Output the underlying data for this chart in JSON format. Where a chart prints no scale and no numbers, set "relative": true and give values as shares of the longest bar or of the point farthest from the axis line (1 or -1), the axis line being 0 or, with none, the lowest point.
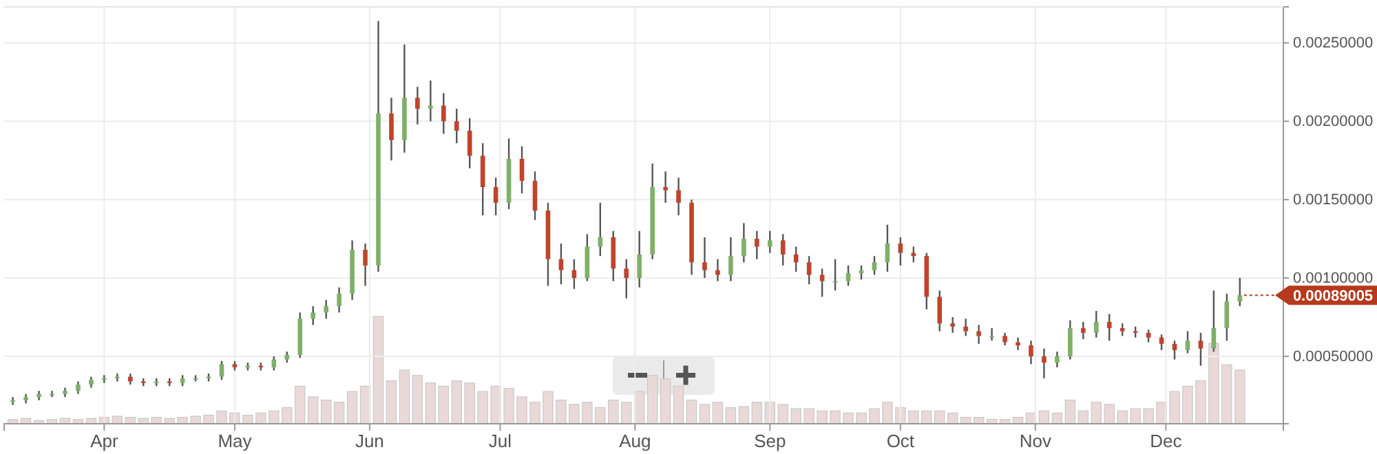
{
  "chart_data": [
    {
      "type": "candlestick",
      "xlim": [
        "--03-09",
        "--12-28"
      ],
      "ylim": [
        7e-05,
        0.00273
      ],
      "xticks": [
        {
          "value": "--04-01",
          "label": "Apr"
        },
        {
          "value": "--05-01",
          "label": "May"
        },
        {
          "value": "--06-01",
          "label": "Jun"
        },
        {
          "value": "--07-01",
          "label": "Jul"
        },
        {
          "value": "--08-01",
          "label": "Aug"
        },
        {
          "value": "--09-01",
          "label": "Sep"
        },
        {
          "value": "--10-01",
          "label": "Oct"
        },
        {
          "value": "--11-01",
          "label": "Nov"
        },
        {
          "value": "--12-01",
          "label": "Dec"
        }
      ],
      "yticks": [
        {
          "value": 0.0005,
          "label": "0.00050000"
        },
        {
          "value": 0.001,
          "label": "0.00100000"
        },
        {
          "value": 0.0015,
          "label": "0.00150000"
        },
        {
          "value": 0.002,
          "label": "0.00200000"
        },
        {
          "value": 0.0025,
          "label": "0.00250000"
        }
      ],
      "grid": true,
      "annotations": [
        {
          "text": "0.00089005",
          "x": "--12-18",
          "y": 0.00089005
        }
      ],
      "x": [
        "--03-11",
        "--03-14",
        "--03-17",
        "--03-20",
        "--03-23",
        "--03-26",
        "--03-29",
        "--04-01",
        "--04-04",
        "--04-07",
        "--04-10",
        "--04-13",
        "--04-16",
        "--04-19",
        "--04-22",
        "--04-25",
        "--04-28",
        "--05-01",
        "--05-04",
        "--05-07",
        "--05-10",
        "--05-13",
        "--05-16",
        "--05-19",
        "--05-22",
        "--05-25",
        "--05-28",
        "--05-31",
        "--06-03",
        "--06-06",
        "--06-09",
        "--06-12",
        "--06-15",
        "--06-18",
        "--06-21",
        "--06-24",
        "--06-27",
        "--06-30",
        "--07-03",
        "--07-06",
        "--07-09",
        "--07-12",
        "--07-15",
        "--07-18",
        "--07-21",
        "--07-24",
        "--07-27",
        "--07-30",
        "--08-02",
        "--08-05",
        "--08-08",
        "--08-11",
        "--08-14",
        "--08-17",
        "--08-20",
        "--08-23",
        "--08-26",
        "--08-29",
        "--09-01",
        "--09-04",
        "--09-07",
        "--09-10",
        "--09-13",
        "--09-16",
        "--09-19",
        "--09-22",
        "--09-25",
        "--09-28",
        "--10-01",
        "--10-04",
        "--10-07",
        "--10-10",
        "--10-13",
        "--10-16",
        "--10-19",
        "--10-22",
        "--10-25",
        "--10-28",
        "--10-31",
        "--11-03",
        "--11-06",
        "--11-09",
        "--11-12",
        "--11-15",
        "--11-18",
        "--11-21",
        "--11-24",
        "--11-27",
        "--11-30",
        "--12-03",
        "--12-06",
        "--12-09",
        "--12-12",
        "--12-15",
        "--12-18"
      ],
      "ohlc": [
        [
          0.00021,
          0.00024,
          0.00019,
          0.00022
        ],
        [
          0.00022,
          0.00026,
          0.0002,
          0.00024
        ],
        [
          0.00024,
          0.00028,
          0.00022,
          0.00026
        ],
        [
          0.00026,
          0.00028,
          0.00024,
          0.00026
        ],
        [
          0.00026,
          0.0003,
          0.00024,
          0.00028
        ],
        [
          0.00028,
          0.00034,
          0.00026,
          0.00032
        ],
        [
          0.00032,
          0.00037,
          0.0003,
          0.00035
        ],
        [
          0.00035,
          0.00038,
          0.00033,
          0.00036
        ],
        [
          0.00036,
          0.00039,
          0.00034,
          0.00037
        ],
        [
          0.00037,
          0.00039,
          0.00032,
          0.00034
        ],
        [
          0.00034,
          0.00036,
          0.00031,
          0.00033
        ],
        [
          0.00033,
          0.00036,
          0.00031,
          0.00034
        ],
        [
          0.00034,
          0.00036,
          0.00031,
          0.00033
        ],
        [
          0.00033,
          0.00038,
          0.00031,
          0.00036
        ],
        [
          0.00036,
          0.00038,
          0.00034,
          0.00036
        ],
        [
          0.00036,
          0.00039,
          0.00034,
          0.00037
        ],
        [
          0.00037,
          0.00047,
          0.00035,
          0.00045
        ],
        [
          0.00045,
          0.00047,
          0.00041,
          0.00043
        ],
        [
          0.00043,
          0.00046,
          0.00041,
          0.00044
        ],
        [
          0.00044,
          0.00046,
          0.00041,
          0.00043
        ],
        [
          0.00043,
          0.0005,
          0.00041,
          0.00048
        ],
        [
          0.00048,
          0.00053,
          0.00046,
          0.00051
        ],
        [
          0.00051,
          0.00078,
          0.00049,
          0.00074
        ],
        [
          0.00074,
          0.00082,
          0.0007,
          0.00078
        ],
        [
          0.00078,
          0.00086,
          0.00074,
          0.00082
        ],
        [
          0.00082,
          0.00094,
          0.00078,
          0.0009
        ],
        [
          0.0009,
          0.00124,
          0.00086,
          0.00118
        ],
        [
          0.00118,
          0.00122,
          0.00095,
          0.00108
        ],
        [
          0.00108,
          0.00264,
          0.00104,
          0.00205
        ],
        [
          0.00205,
          0.00215,
          0.00175,
          0.00188
        ],
        [
          0.00188,
          0.00249,
          0.0018,
          0.00215
        ],
        [
          0.00215,
          0.00222,
          0.00198,
          0.00208
        ],
        [
          0.00208,
          0.00226,
          0.002,
          0.0021
        ],
        [
          0.0021,
          0.00218,
          0.00192,
          0.002
        ],
        [
          0.002,
          0.00208,
          0.00186,
          0.00194
        ],
        [
          0.00194,
          0.00202,
          0.0017,
          0.00178
        ],
        [
          0.00178,
          0.00186,
          0.0014,
          0.00158
        ],
        [
          0.00158,
          0.00164,
          0.0014,
          0.00148
        ],
        [
          0.00148,
          0.00189,
          0.00144,
          0.00176
        ],
        [
          0.00176,
          0.00184,
          0.00154,
          0.00162
        ],
        [
          0.00162,
          0.00168,
          0.00137,
          0.00143
        ],
        [
          0.00143,
          0.00148,
          0.00095,
          0.00112
        ],
        [
          0.00112,
          0.00122,
          0.00096,
          0.00105
        ],
        [
          0.00105,
          0.00112,
          0.00093,
          0.001
        ],
        [
          0.001,
          0.00128,
          0.00098,
          0.0012
        ],
        [
          0.0012,
          0.00148,
          0.00114,
          0.00126
        ],
        [
          0.00126,
          0.0013,
          0.00098,
          0.00106
        ],
        [
          0.00106,
          0.00112,
          0.00087,
          0.001
        ],
        [
          0.001,
          0.0013,
          0.00094,
          0.00115
        ],
        [
          0.00115,
          0.00173,
          0.00112,
          0.00158
        ],
        [
          0.00158,
          0.00168,
          0.00148,
          0.00156
        ],
        [
          0.00156,
          0.00164,
          0.0014,
          0.00148
        ],
        [
          0.00148,
          0.0015,
          0.00102,
          0.0011
        ],
        [
          0.0011,
          0.00126,
          0.001,
          0.00105
        ],
        [
          0.00105,
          0.00112,
          0.00098,
          0.00102
        ],
        [
          0.00102,
          0.00126,
          0.00098,
          0.00114
        ],
        [
          0.00114,
          0.00135,
          0.0011,
          0.00125
        ],
        [
          0.00125,
          0.0013,
          0.00112,
          0.0012
        ],
        [
          0.0012,
          0.0013,
          0.00116,
          0.00124
        ],
        [
          0.00124,
          0.00128,
          0.00108,
          0.00115
        ],
        [
          0.00115,
          0.0012,
          0.00104,
          0.0011
        ],
        [
          0.0011,
          0.00114,
          0.00096,
          0.00102
        ],
        [
          0.00102,
          0.00106,
          0.00088,
          0.00098
        ],
        [
          0.00098,
          0.00112,
          0.00092,
          0.00098
        ],
        [
          0.00098,
          0.00108,
          0.00095,
          0.00103
        ],
        [
          0.00103,
          0.00108,
          0.00099,
          0.00105
        ],
        [
          0.00105,
          0.00114,
          0.00102,
          0.0011
        ],
        [
          0.0011,
          0.00134,
          0.00104,
          0.00122
        ],
        [
          0.00122,
          0.00126,
          0.00108,
          0.00116
        ],
        [
          0.00116,
          0.0012,
          0.0011,
          0.00114
        ],
        [
          0.00114,
          0.00116,
          0.0008,
          0.00088
        ],
        [
          0.00088,
          0.00092,
          0.00066,
          0.00071
        ],
        [
          0.00071,
          0.00075,
          0.00065,
          0.00069
        ],
        [
          0.00069,
          0.00074,
          0.00063,
          0.00066
        ],
        [
          0.00066,
          0.0007,
          0.00058,
          0.00063
        ],
        [
          0.00063,
          0.00068,
          0.0006,
          0.00063
        ],
        [
          0.00063,
          0.00065,
          0.00057,
          0.00059
        ],
        [
          0.00059,
          0.00062,
          0.00054,
          0.00057
        ],
        [
          0.00057,
          0.0006,
          0.00045,
          0.0005
        ],
        [
          0.0005,
          0.00055,
          0.00036,
          0.00046
        ],
        [
          0.00046,
          0.00053,
          0.00043,
          0.0005
        ],
        [
          0.0005,
          0.00073,
          0.00048,
          0.00068
        ],
        [
          0.00068,
          0.00072,
          0.00061,
          0.00065
        ],
        [
          0.00065,
          0.00079,
          0.00062,
          0.00072
        ],
        [
          0.00072,
          0.00077,
          0.0006,
          0.00068
        ],
        [
          0.00068,
          0.00071,
          0.00063,
          0.00066
        ],
        [
          0.00066,
          0.00069,
          0.00062,
          0.00065
        ],
        [
          0.00065,
          0.00067,
          0.00059,
          0.00062
        ],
        [
          0.00062,
          0.00064,
          0.00054,
          0.00058
        ],
        [
          0.00058,
          0.0006,
          0.00048,
          0.00054
        ],
        [
          0.00054,
          0.00066,
          0.00052,
          0.0006
        ],
        [
          0.0006,
          0.00065,
          0.00044,
          0.00055
        ],
        [
          0.00055,
          0.00092,
          0.00053,
          0.00068
        ],
        [
          0.00068,
          0.0009,
          0.0006,
          0.00085
        ],
        [
          0.00085,
          0.001,
          0.00082,
          0.00089005
        ]
      ]
    },
    {
      "type": "bar",
      "relative": true,
      "color": "#ead9d9",
      "xlim": [
        "--03-09",
        "--12-28"
      ],
      "x": [
        "--03-11",
        "--03-14",
        "--03-17",
        "--03-20",
        "--03-23",
        "--03-26",
        "--03-29",
        "--04-01",
        "--04-04",
        "--04-07",
        "--04-10",
        "--04-13",
        "--04-16",
        "--04-19",
        "--04-22",
        "--04-25",
        "--04-28",
        "--05-01",
        "--05-04",
        "--05-07",
        "--05-10",
        "--05-13",
        "--05-16",
        "--05-19",
        "--05-22",
        "--05-25",
        "--05-28",
        "--05-31",
        "--06-03",
        "--06-06",
        "--06-09",
        "--06-12",
        "--06-15",
        "--06-18",
        "--06-21",
        "--06-24",
        "--06-27",
        "--06-30",
        "--07-03",
        "--07-06",
        "--07-09",
        "--07-12",
        "--07-15",
        "--07-18",
        "--07-21",
        "--07-24",
        "--07-27",
        "--07-30",
        "--08-02",
        "--08-05",
        "--08-08",
        "--08-11",
        "--08-14",
        "--08-17",
        "--08-20",
        "--08-23",
        "--08-26",
        "--08-29",
        "--09-01",
        "--09-04",
        "--09-07",
        "--09-10",
        "--09-13",
        "--09-16",
        "--09-19",
        "--09-22",
        "--09-25",
        "--09-28",
        "--10-01",
        "--10-04",
        "--10-07",
        "--10-10",
        "--10-13",
        "--10-16",
        "--10-19",
        "--10-22",
        "--10-25",
        "--10-28",
        "--10-31",
        "--11-03",
        "--11-06",
        "--11-09",
        "--11-12",
        "--11-15",
        "--11-18",
        "--11-21",
        "--11-24",
        "--11-27",
        "--11-30",
        "--12-03",
        "--12-06",
        "--12-09",
        "--12-12",
        "--12-15",
        "--12-18"
      ],
      "values": [
        0.04,
        0.05,
        0.03,
        0.04,
        0.05,
        0.04,
        0.05,
        0.06,
        0.07,
        0.06,
        0.05,
        0.06,
        0.05,
        0.06,
        0.07,
        0.08,
        0.12,
        0.1,
        0.08,
        0.1,
        0.12,
        0.15,
        0.35,
        0.25,
        0.22,
        0.2,
        0.3,
        0.35,
        1.0,
        0.4,
        0.5,
        0.45,
        0.38,
        0.35,
        0.4,
        0.38,
        0.3,
        0.35,
        0.33,
        0.25,
        0.2,
        0.3,
        0.22,
        0.18,
        0.2,
        0.15,
        0.22,
        0.2,
        0.3,
        0.45,
        0.42,
        0.35,
        0.22,
        0.18,
        0.2,
        0.15,
        0.16,
        0.2,
        0.2,
        0.18,
        0.14,
        0.14,
        0.12,
        0.12,
        0.1,
        0.1,
        0.14,
        0.2,
        0.15,
        0.12,
        0.12,
        0.12,
        0.1,
        0.06,
        0.06,
        0.04,
        0.04,
        0.06,
        0.1,
        0.12,
        0.1,
        0.22,
        0.12,
        0.2,
        0.18,
        0.12,
        0.14,
        0.14,
        0.2,
        0.3,
        0.35,
        0.4,
        0.75,
        0.55,
        0.5
      ]
    }
  ]
}
